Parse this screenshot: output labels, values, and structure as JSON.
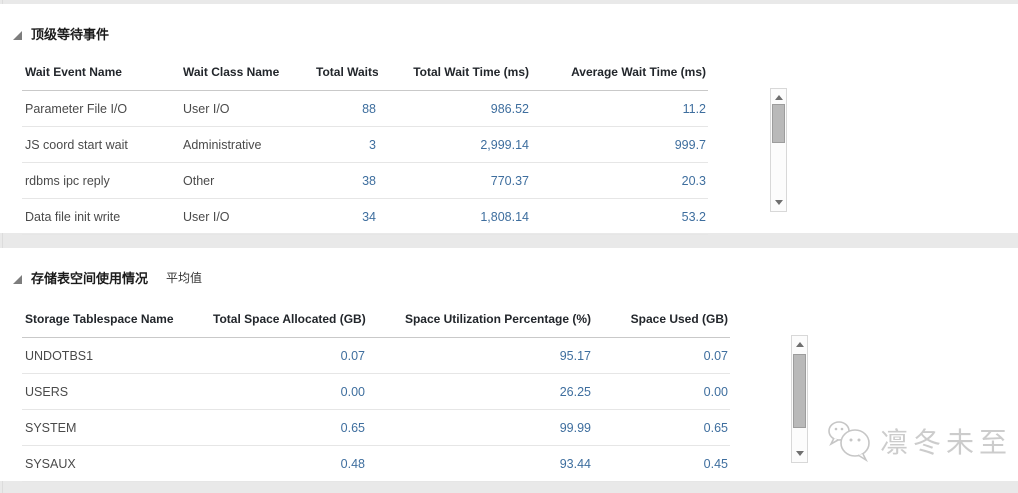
{
  "colors": {
    "page_bg": "#e9e9e9",
    "panel_bg": "#ffffff",
    "value_blue": "#3e6e9e",
    "header_text": "#22262b",
    "body_text": "#4a4a4a"
  },
  "panels": [
    {
      "title": "顶级等待事件",
      "subtitle": "",
      "table": {
        "columns": [
          {
            "label": "Wait Event Name",
            "align": "left",
            "numeric": false
          },
          {
            "label": "Wait Class Name",
            "align": "left",
            "numeric": false
          },
          {
            "label": "Total Waits",
            "align": "right",
            "numeric": true
          },
          {
            "label": "Total Wait Time (ms)",
            "align": "right",
            "numeric": true
          },
          {
            "label": "Average Wait Time (ms)",
            "align": "right",
            "numeric": true
          }
        ],
        "rows": [
          [
            "Parameter File I/O",
            "User I/O",
            "88",
            "986.52",
            "11.2"
          ],
          [
            "JS coord start wait",
            "Administrative",
            "3",
            "2,999.14",
            "999.7"
          ],
          [
            "rdbms ipc reply",
            "Other",
            "38",
            "770.37",
            "20.3"
          ],
          [
            "Data file init write",
            "User I/O",
            "34",
            "1,808.14",
            "53.2"
          ]
        ]
      }
    },
    {
      "title": "存储表空间使用情况",
      "subtitle": "平均值",
      "table": {
        "columns": [
          {
            "label": "Storage Tablespace Name",
            "align": "left",
            "numeric": false
          },
          {
            "label": "Total Space Allocated (GB)",
            "align": "right",
            "numeric": true
          },
          {
            "label": "Space Utilization Percentage (%)",
            "align": "right",
            "numeric": true
          },
          {
            "label": "Space Used (GB)",
            "align": "right",
            "numeric": true
          }
        ],
        "rows": [
          [
            "UNDOTBS1",
            "0.07",
            "95.17",
            "0.07"
          ],
          [
            "USERS",
            "0.00",
            "26.25",
            "0.00"
          ],
          [
            "SYSTEM",
            "0.65",
            "99.99",
            "0.65"
          ],
          [
            "SYSAUX",
            "0.48",
            "93.44",
            "0.45"
          ]
        ]
      }
    }
  ],
  "watermark": {
    "text": "凛冬未至",
    "icon": "wechat-icon"
  }
}
